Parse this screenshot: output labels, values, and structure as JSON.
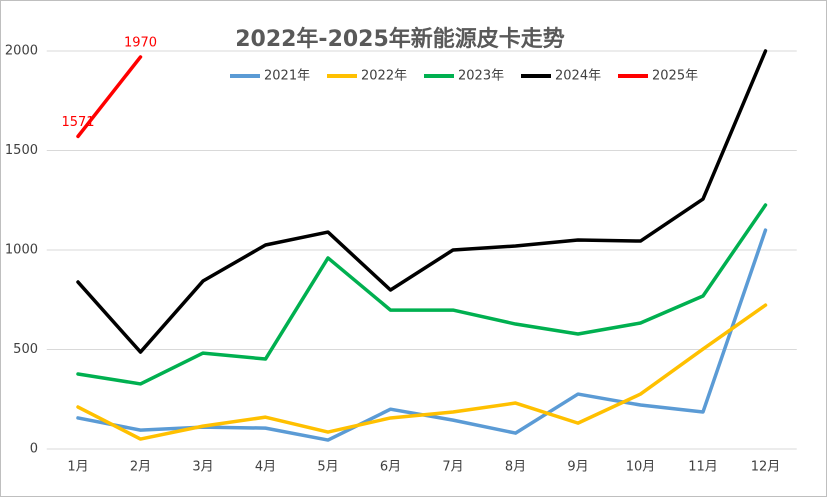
{
  "chart_data": {
    "type": "line",
    "title": "2022年-2025年新能源皮卡走势",
    "categories": [
      "1月",
      "2月",
      "3月",
      "4月",
      "5月",
      "6月",
      "7月",
      "8月",
      "9月",
      "10月",
      "11月",
      "12月"
    ],
    "ylim": [
      0,
      2000
    ],
    "yticks": [
      0,
      500,
      1000,
      1500,
      2000
    ],
    "grid": true,
    "legend": "top",
    "series": [
      {
        "name": "2021年",
        "color": "#5b9bd5",
        "values": [
          156,
          95,
          110,
          105,
          45,
          200,
          145,
          80,
          276,
          221,
          186,
          1100
        ]
      },
      {
        "name": "2022年",
        "color": "#ffc000",
        "values": [
          211,
          50,
          115,
          160,
          85,
          156,
          186,
          231,
          130,
          276,
          502,
          723
        ]
      },
      {
        "name": "2023年",
        "color": "#00b050",
        "values": [
          377,
          327,
          482,
          452,
          960,
          698,
          698,
          628,
          578,
          633,
          769,
          1226
        ]
      },
      {
        "name": "2024年",
        "color": "#000000",
        "values": [
          839,
          487,
          844,
          1025,
          1090,
          799,
          1000,
          1020,
          1050,
          1045,
          1256,
          2000
        ]
      },
      {
        "name": "2025年",
        "color": "#ff0000",
        "show_labels": true,
        "values": [
          1571,
          1970,
          null,
          null,
          null,
          null,
          null,
          null,
          null,
          null,
          null,
          null
        ]
      }
    ]
  }
}
